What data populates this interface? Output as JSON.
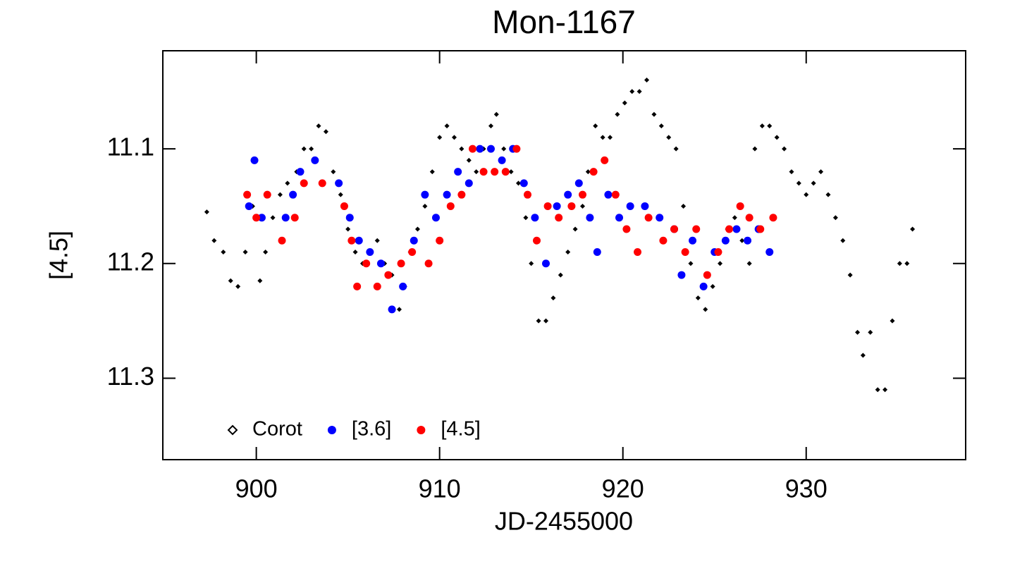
{
  "chart_data": {
    "type": "scatter",
    "title": "Mon-1167",
    "x_label": "JD-2455000",
    "y_label": "[4.5]",
    "xlim": [
      894.9,
      938.7
    ],
    "ylim": [
      11.371,
      11.0145
    ],
    "xticks": [
      900,
      910,
      920,
      930
    ],
    "yticks": [
      11.1,
      11.2,
      11.3
    ],
    "legend": "lower left",
    "series": [
      {
        "name": "Corot",
        "color": "#000000",
        "marker": "diamond",
        "x": [
          897.3,
          897.7,
          898.2,
          898.6,
          899.0,
          899.4,
          899.8,
          900.2,
          900.5,
          900.9,
          901.3,
          901.7,
          902.2,
          902.6,
          903.0,
          903.4,
          903.8,
          904.2,
          904.6,
          905.0,
          905.4,
          905.8,
          906.2,
          906.6,
          907.0,
          907.4,
          907.8,
          908.1,
          908.4,
          908.8,
          909.2,
          909.6,
          910.0,
          910.4,
          910.8,
          911.2,
          911.6,
          912.0,
          912.4,
          912.8,
          913.1,
          913.5,
          913.9,
          914.3,
          914.7,
          915.0,
          915.4,
          915.8,
          916.2,
          916.6,
          917.0,
          917.4,
          917.8,
          918.1,
          918.5,
          918.9,
          919.3,
          919.7,
          920.1,
          920.5,
          920.9,
          921.3,
          921.7,
          922.1,
          922.5,
          922.9,
          923.3,
          923.7,
          924.1,
          924.5,
          924.9,
          925.3,
          925.7,
          926.1,
          926.5,
          926.9,
          927.2,
          927.6,
          928.0,
          928.4,
          928.8,
          929.2,
          929.6,
          930.0,
          930.4,
          930.8,
          931.2,
          931.6,
          932.0,
          932.4,
          932.8,
          933.1,
          933.5,
          933.9,
          934.3,
          934.7,
          935.1,
          935.5,
          935.8
        ],
        "values": [
          11.155,
          11.18,
          11.19,
          11.215,
          11.22,
          11.19,
          11.15,
          11.215,
          11.19,
          11.16,
          11.14,
          11.13,
          11.12,
          11.1,
          11.1,
          11.08,
          11.085,
          11.12,
          11.14,
          11.17,
          11.19,
          11.2,
          11.19,
          11.18,
          11.2,
          11.21,
          11.24,
          11.22,
          11.19,
          11.17,
          11.15,
          11.12,
          11.09,
          11.08,
          11.09,
          11.1,
          11.11,
          11.12,
          11.1,
          11.08,
          11.07,
          11.1,
          11.12,
          11.13,
          11.16,
          11.2,
          11.25,
          11.25,
          11.23,
          11.21,
          11.19,
          11.17,
          11.15,
          11.12,
          11.08,
          11.09,
          11.09,
          11.07,
          11.06,
          11.05,
          11.05,
          11.04,
          11.07,
          11.08,
          11.09,
          11.1,
          11.15,
          11.2,
          11.23,
          11.24,
          11.22,
          11.2,
          11.17,
          11.16,
          11.18,
          11.2,
          11.1,
          11.08,
          11.08,
          11.09,
          11.1,
          11.12,
          11.13,
          11.14,
          11.13,
          11.12,
          11.14,
          11.16,
          11.18,
          11.21,
          11.26,
          11.28,
          11.26,
          11.31,
          11.31,
          11.25,
          11.2,
          11.2,
          11.17
        ]
      },
      {
        "name": "[3.6]",
        "color": "#0000ff",
        "marker": "circle",
        "x": [
          899.6,
          899.9,
          900.3,
          901.6,
          902.0,
          902.4,
          903.2,
          904.5,
          905.1,
          905.6,
          906.2,
          906.8,
          907.4,
          908.0,
          908.6,
          909.2,
          909.8,
          910.4,
          911.0,
          911.6,
          912.2,
          912.8,
          913.4,
          914.0,
          914.6,
          915.2,
          915.8,
          916.4,
          917.0,
          917.6,
          918.2,
          918.6,
          919.2,
          919.8,
          920.4,
          921.2,
          922.0,
          922.8,
          923.2,
          923.8,
          924.4,
          925.0,
          925.6,
          926.2,
          926.8,
          927.4,
          928.0
        ],
        "values": [
          11.15,
          11.11,
          11.16,
          11.16,
          11.14,
          11.12,
          11.11,
          11.13,
          11.16,
          11.18,
          11.19,
          11.2,
          11.24,
          11.22,
          11.18,
          11.14,
          11.16,
          11.14,
          11.12,
          11.13,
          11.1,
          11.1,
          11.11,
          11.1,
          11.13,
          11.16,
          11.2,
          11.15,
          11.14,
          11.13,
          11.16,
          11.19,
          11.14,
          11.16,
          11.15,
          11.15,
          11.16,
          11.17,
          11.21,
          11.18,
          11.22,
          11.19,
          11.18,
          11.17,
          11.18,
          11.17,
          11.19
        ]
      },
      {
        "name": "[4.5]",
        "color": "#ff0000",
        "marker": "circle",
        "x": [
          899.5,
          900.0,
          900.6,
          901.4,
          902.1,
          902.6,
          903.6,
          904.8,
          905.2,
          905.5,
          906.0,
          906.6,
          907.2,
          907.9,
          908.5,
          909.4,
          910.0,
          910.6,
          911.2,
          911.8,
          912.4,
          913.0,
          913.6,
          914.2,
          914.8,
          915.3,
          915.9,
          916.5,
          917.2,
          917.8,
          918.4,
          919.0,
          919.6,
          920.2,
          920.8,
          921.4,
          922.2,
          922.8,
          923.4,
          924.0,
          924.6,
          925.2,
          925.8,
          926.4,
          926.9,
          927.5,
          928.2
        ],
        "values": [
          11.14,
          11.16,
          11.14,
          11.18,
          11.16,
          11.13,
          11.13,
          11.15,
          11.18,
          11.22,
          11.2,
          11.22,
          11.21,
          11.2,
          11.19,
          11.2,
          11.18,
          11.15,
          11.14,
          11.1,
          11.12,
          11.12,
          11.12,
          11.1,
          11.14,
          11.18,
          11.15,
          11.16,
          11.15,
          11.14,
          11.12,
          11.11,
          11.14,
          11.17,
          11.19,
          11.16,
          11.18,
          11.17,
          11.19,
          11.17,
          11.21,
          11.19,
          11.17,
          11.15,
          11.16,
          11.17,
          11.16
        ]
      }
    ]
  }
}
